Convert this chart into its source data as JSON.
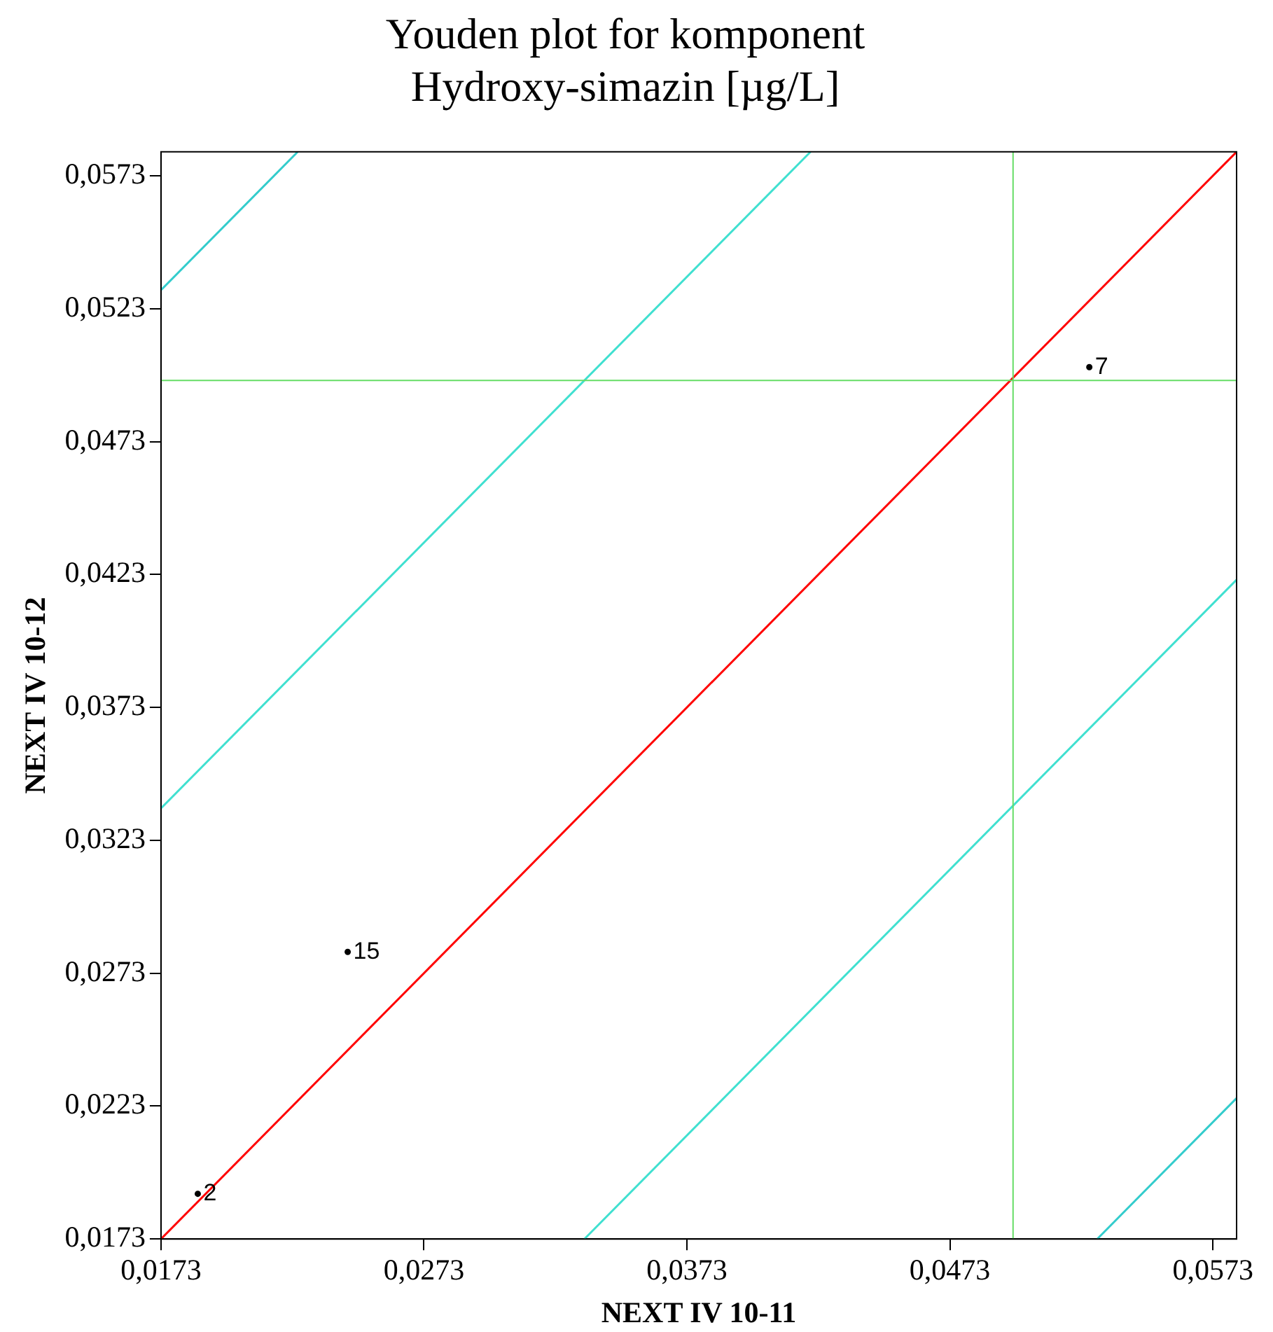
{
  "chart_data": {
    "type": "line",
    "title": "Youden plot for komponent\nHydroxy-simazin [µg/L]",
    "xlabel": "NEXT IV 10-11",
    "ylabel": "NEXT IV 10-12",
    "series": [
      {
        "color": "#ff0000",
        "x": [
          0.0173,
          0.0582
        ],
        "values": [
          0.0173,
          0.0582
        ]
      },
      {
        "color": "#40e0d0",
        "x": [
          0.0173,
          0.042
        ],
        "values": [
          0.0335,
          0.0582
        ]
      },
      {
        "color": "#40e0d0",
        "x": [
          0.0334,
          0.0582
        ],
        "values": [
          0.0173,
          0.0421
        ]
      },
      {
        "color": "#33cccc",
        "x": [
          0.0173,
          0.0225
        ],
        "values": [
          0.053,
          0.0582
        ]
      },
      {
        "color": "#33cccc",
        "x": [
          0.0529,
          0.0582
        ],
        "values": [
          0.0173,
          0.0226
        ]
      },
      {
        "type": "scatter",
        "name": "7",
        "marker": "circle",
        "color": "#000000",
        "x": [
          0.0526
        ],
        "values": [
          0.0501
        ]
      },
      {
        "type": "scatter",
        "name": "15",
        "marker": "circle",
        "color": "#000000",
        "x": [
          0.0244
        ],
        "values": [
          0.0281
        ]
      },
      {
        "type": "scatter",
        "name": "2",
        "marker": "circle",
        "color": "#000000",
        "x": [
          0.0187
        ],
        "values": [
          0.019
        ]
      }
    ],
    "ref_lines": [
      {
        "axis": "x",
        "value": 0.0497,
        "color": "#66dd66"
      },
      {
        "axis": "y",
        "value": 0.0496,
        "color": "#66dd66"
      }
    ],
    "xlim": [
      0.0173,
      0.0582
    ],
    "ylim": [
      0.0173,
      0.0582
    ],
    "xticks": [
      {
        "value": 0.0173,
        "label": "0,0173"
      },
      {
        "value": 0.0273,
        "label": "0,0273"
      },
      {
        "value": 0.0373,
        "label": "0,0373"
      },
      {
        "value": 0.0473,
        "label": "0,0473"
      },
      {
        "value": 0.0573,
        "label": "0,0573"
      }
    ],
    "yticks": [
      {
        "value": 0.0173,
        "label": "0,0173"
      },
      {
        "value": 0.0223,
        "label": "0,0223"
      },
      {
        "value": 0.0273,
        "label": "0,0273"
      },
      {
        "value": 0.0323,
        "label": "0,0323"
      },
      {
        "value": 0.0373,
        "label": "0,0373"
      },
      {
        "value": 0.0423,
        "label": "0,0423"
      },
      {
        "value": 0.0473,
        "label": "0,0473"
      },
      {
        "value": 0.0523,
        "label": "0,0523"
      },
      {
        "value": 0.0573,
        "label": "0,0573"
      }
    ],
    "grid": false,
    "legend": false,
    "marker": "none",
    "line_style": "solid"
  }
}
